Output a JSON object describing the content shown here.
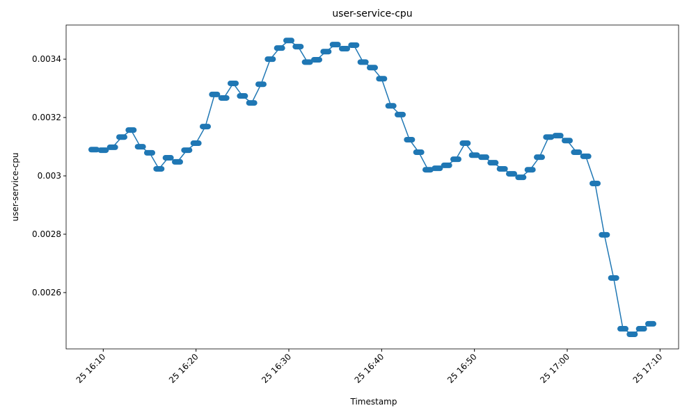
{
  "chart_data": {
    "type": "line",
    "title": "user-service-cpu",
    "x_label": "Timestamp",
    "y_label": "user-service-cpu",
    "x": [
      "25 16:09",
      "25 16:10",
      "25 16:11",
      "25 16:12",
      "25 16:13",
      "25 16:14",
      "25 16:15",
      "25 16:16",
      "25 16:17",
      "25 16:18",
      "25 16:19",
      "25 16:20",
      "25 16:21",
      "25 16:22",
      "25 16:23",
      "25 16:24",
      "25 16:25",
      "25 16:26",
      "25 16:27",
      "25 16:28",
      "25 16:29",
      "25 16:30",
      "25 16:31",
      "25 16:32",
      "25 16:33",
      "25 16:34",
      "25 16:35",
      "25 16:36",
      "25 16:37",
      "25 16:38",
      "25 16:39",
      "25 16:40",
      "25 16:41",
      "25 16:42",
      "25 16:43",
      "25 16:44",
      "25 16:45",
      "25 16:46",
      "25 16:47",
      "25 16:48",
      "25 16:49",
      "25 16:50",
      "25 16:51",
      "25 16:52",
      "25 16:53",
      "25 16:54",
      "25 16:55",
      "25 16:56",
      "25 16:57",
      "25 16:58",
      "25 16:59",
      "25 17:00",
      "25 17:01",
      "25 17:02",
      "25 17:03",
      "25 17:04",
      "25 17:05",
      "25 17:06",
      "25 17:07",
      "25 17:08",
      "25 17:09"
    ],
    "series": [
      {
        "name": "user-service-cpu",
        "color": "#1f77b4",
        "values": [
          0.00309,
          0.003088,
          0.003098,
          0.003133,
          0.003157,
          0.0031,
          0.003079,
          0.003024,
          0.003062,
          0.003048,
          0.003088,
          0.003112,
          0.003169,
          0.003279,
          0.003267,
          0.003317,
          0.003274,
          0.00325,
          0.003314,
          0.0034,
          0.003438,
          0.003464,
          0.003443,
          0.00339,
          0.003398,
          0.003426,
          0.00345,
          0.003436,
          0.003448,
          0.00339,
          0.003371,
          0.003333,
          0.00324,
          0.00321,
          0.003124,
          0.003081,
          0.003021,
          0.003026,
          0.003036,
          0.003057,
          0.003112,
          0.003071,
          0.003064,
          0.003045,
          0.003024,
          0.003007,
          0.002995,
          0.003021,
          0.003064,
          0.003133,
          0.003138,
          0.003121,
          0.003081,
          0.003067,
          0.002974,
          0.002798,
          0.00265,
          0.002476,
          0.002457,
          0.002476,
          0.002493
        ]
      }
    ],
    "xlim": [
      "25 16:06",
      "25 17:12"
    ],
    "xticks": [
      "25 16:10",
      "25 16:20",
      "25 16:30",
      "25 16:40",
      "25 16:50",
      "25 17:00",
      "25 17:10"
    ],
    "ylim": [
      0.002407,
      0.003517
    ],
    "yticks": [
      0.0026,
      0.0028,
      0.003,
      0.0032,
      0.0034
    ],
    "grid": false
  }
}
